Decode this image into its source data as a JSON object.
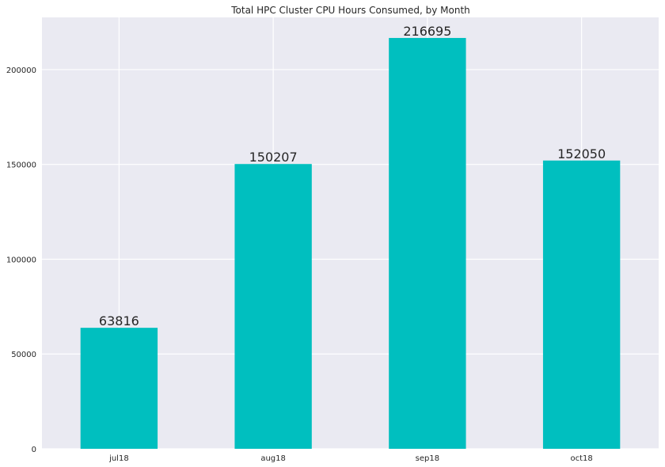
{
  "chart_data": {
    "type": "bar",
    "title": "Total HPC Cluster CPU Hours Consumed, by Month",
    "xlabel": "",
    "ylabel": "",
    "categories": [
      "jul18",
      "aug18",
      "sep18",
      "oct18"
    ],
    "values": [
      63816,
      150207,
      216695,
      152050
    ],
    "data_labels": [
      "63816",
      "150207",
      "216695",
      "152050"
    ],
    "ylim": [
      0,
      227530
    ],
    "yticks": [
      0,
      50000,
      100000,
      150000,
      200000
    ],
    "ytick_labels": [
      "0",
      "50000",
      "100000",
      "150000",
      "200000"
    ],
    "grid": true,
    "legend": "none",
    "colors": {
      "bar": "#00bfbf",
      "plot_background": "#eaeaf2",
      "grid": "#ffffff",
      "text": "#262626"
    }
  }
}
